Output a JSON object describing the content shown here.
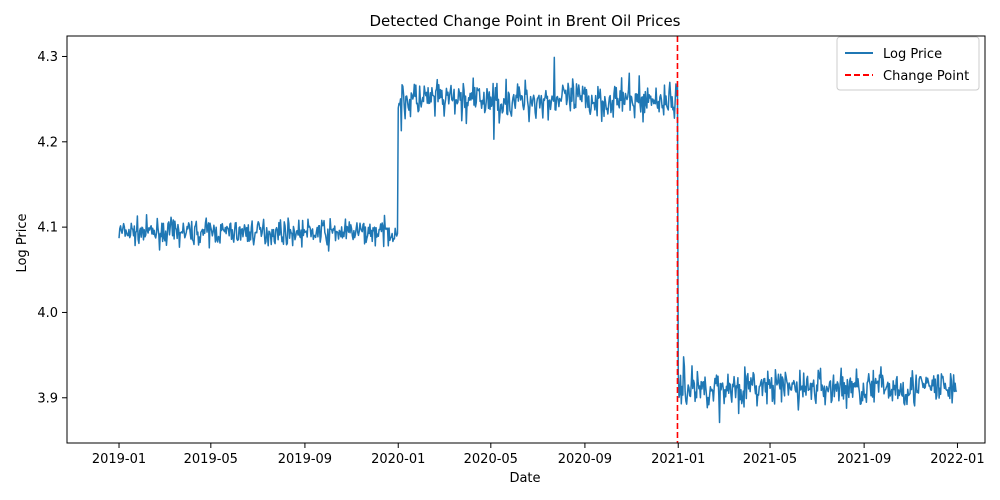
{
  "chart_data": {
    "type": "line",
    "title": "Detected Change Point in Brent Oil Prices",
    "xlabel": "Date",
    "ylabel": "Log Price",
    "x_range": [
      "2018-10-25",
      "2022-02-06"
    ],
    "ylim": [
      3.847,
      4.324
    ],
    "x_ticks": [
      "2019-01",
      "2019-05",
      "2019-09",
      "2020-01",
      "2020-05",
      "2020-09",
      "2021-01",
      "2021-05",
      "2021-09",
      "2022-01"
    ],
    "y_ticks": [
      3.9,
      4.0,
      4.1,
      4.2,
      4.3
    ],
    "y_tick_labels": [
      "3.9",
      "4.0",
      "4.1",
      "4.2",
      "4.3"
    ],
    "grid": false,
    "legend_position": "top-right",
    "series": [
      {
        "name": "Log Price",
        "color": "#1f77b4",
        "style": "solid",
        "segments": [
          {
            "start": "2019-01-01",
            "end": "2019-12-31",
            "mean": 4.094,
            "noise": 0.007
          },
          {
            "start": "2020-01-01",
            "end": "2020-12-31",
            "mean": 4.249,
            "noise": 0.011
          },
          {
            "start": "2021-01-01",
            "end": "2021-12-31",
            "mean": 3.912,
            "noise": 0.011
          }
        ],
        "spikes": [
          {
            "date": "2020-07-23",
            "value": 4.299
          },
          {
            "date": "2020-05-05",
            "value": 4.203
          },
          {
            "date": "2021-01-08",
            "value": 3.948
          },
          {
            "date": "2021-02-24",
            "value": 3.871
          },
          {
            "date": "2019-10-02",
            "value": 4.072
          },
          {
            "date": "2020-01-05",
            "value": 4.213
          }
        ]
      },
      {
        "name": "Change Point",
        "color": "#ff0000",
        "style": "dashed",
        "x": "2020-12-31"
      }
    ]
  }
}
